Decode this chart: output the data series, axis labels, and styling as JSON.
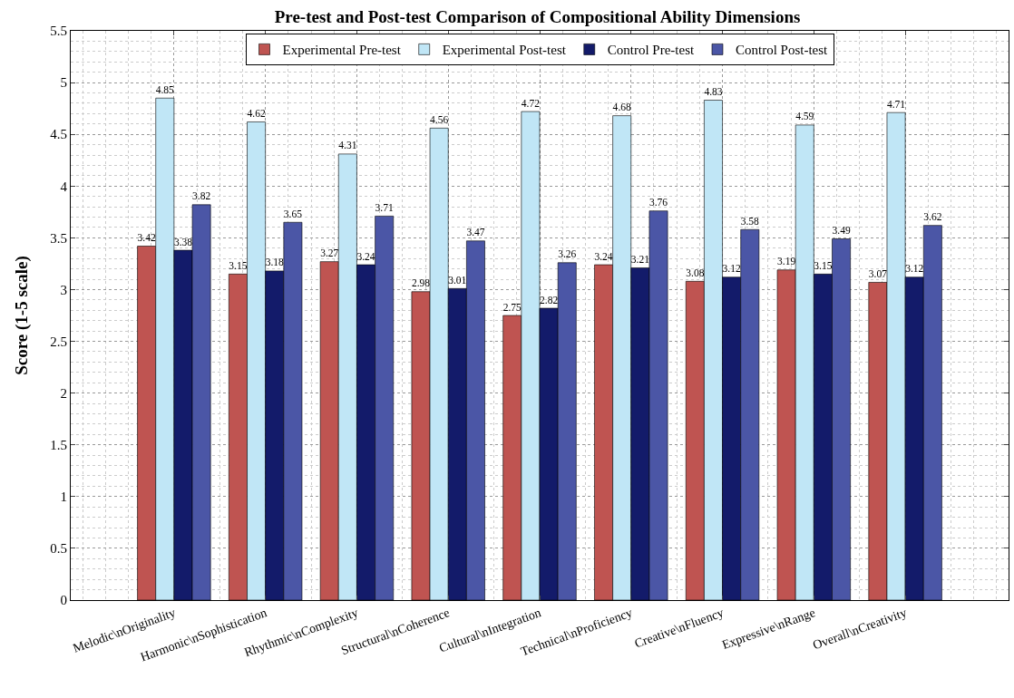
{
  "chart_data": {
    "type": "bar",
    "title": "Pre-test and Post-test Comparison of Compositional Ability Dimensions",
    "ylabel": "Score (1-5 scale)",
    "categories": [
      "Melodic\\nOriginality",
      "Harmonic\\nSophistication",
      "Rhythmic\\nComplexity",
      "Structural\\nCoherence",
      "Cultural\\nIntegration",
      "Technical\\nProficiency",
      "Creative\\nFluency",
      "Expressive\\nRange",
      "Overall\\nCreativity"
    ],
    "series": [
      {
        "name": "Experimental Pre-test",
        "color": "#bf5451",
        "values": [
          3.42,
          3.15,
          3.27,
          2.98,
          2.75,
          3.24,
          3.08,
          3.19,
          3.07
        ]
      },
      {
        "name": "Experimental Post-test",
        "color": "#c0e6f6",
        "values": [
          4.85,
          4.62,
          4.31,
          4.56,
          4.72,
          4.68,
          4.83,
          4.59,
          4.71
        ]
      },
      {
        "name": "Control Pre-test",
        "color": "#131b6a",
        "values": [
          3.38,
          3.18,
          3.24,
          3.01,
          2.82,
          3.21,
          3.12,
          3.15,
          3.12
        ]
      },
      {
        "name": "Control Post-test",
        "color": "#4b56a6",
        "values": [
          3.82,
          3.65,
          3.71,
          3.47,
          3.26,
          3.76,
          3.58,
          3.49,
          3.62
        ]
      }
    ],
    "ylim": [
      0,
      5.5
    ],
    "yticks": [
      0,
      0.5,
      1,
      1.5,
      2,
      2.5,
      3,
      3.5,
      4,
      4.5,
      5,
      5.5
    ],
    "grid": true,
    "legend": "top",
    "data_labels": true
  }
}
